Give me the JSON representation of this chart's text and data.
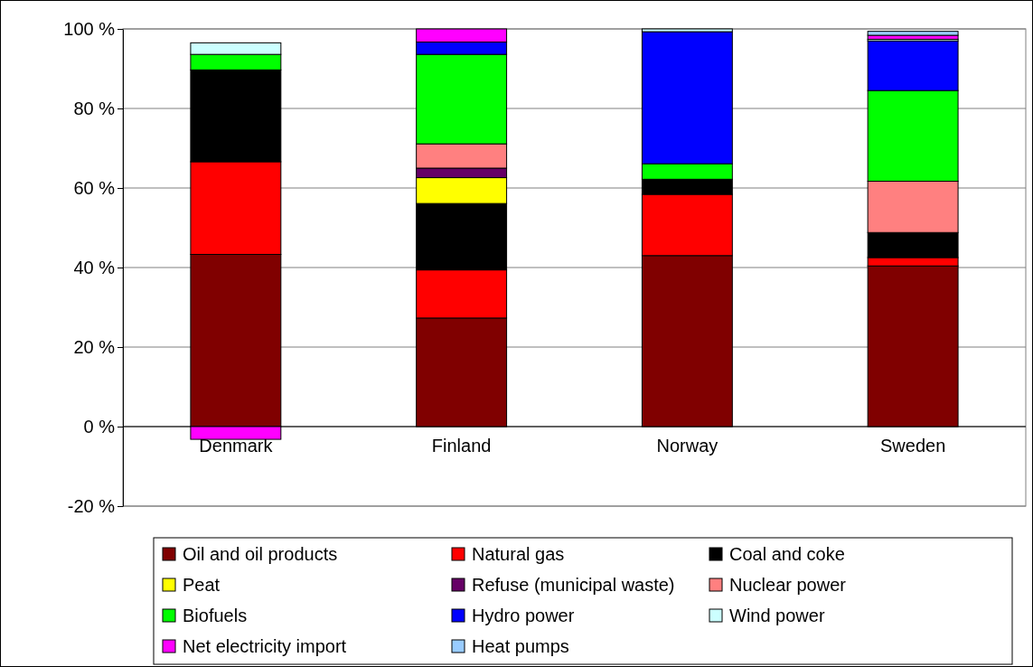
{
  "chart_data": {
    "type": "bar",
    "stacked": true,
    "categories": [
      "Denmark",
      "Finland",
      "Norway",
      "Sweden"
    ],
    "series": [
      {
        "name": "Oil and oil products",
        "color": "#800000",
        "values": [
          43.3,
          27.3,
          43.0,
          40.4
        ]
      },
      {
        "name": "Natural gas",
        "color": "#ff0000",
        "values": [
          23.3,
          12.1,
          15.4,
          2.1
        ]
      },
      {
        "name": "Coal and coke",
        "color": "#000000",
        "values": [
          23.1,
          16.7,
          3.8,
          6.3
        ]
      },
      {
        "name": "Peat",
        "color": "#ffff00",
        "values": [
          0,
          6.5,
          0,
          null
        ]
      },
      {
        "name": "Refuse (municipal waste)",
        "color": "#660066",
        "values": [
          null,
          2.4,
          0,
          0
        ]
      },
      {
        "name": "Nuclear power",
        "color": "#ff8080",
        "values": [
          0,
          6.1,
          0,
          12.9
        ]
      },
      {
        "name": "Biofuels",
        "color": "#00ff00",
        "values": [
          3.9,
          22.5,
          3.9,
          22.8
        ]
      },
      {
        "name": "Hydro power",
        "color": "#0000ff",
        "values": [
          0,
          3.1,
          33.2,
          12.5
        ]
      },
      {
        "name": "Wind power",
        "color": "#ccffff",
        "values": [
          2.9,
          0,
          0.7,
          0.4
        ]
      },
      {
        "name": "Net electricity import",
        "color": "#ff00ff",
        "values": [
          -3.2,
          3.3,
          0,
          1.0
        ]
      },
      {
        "name": "Heat pumps",
        "color": "#99ccff",
        "values": [
          0,
          0,
          0,
          1.0
        ]
      }
    ],
    "ylim": [
      -20,
      100
    ],
    "yticks": [
      {
        "value": -20,
        "label": "-20 %"
      },
      {
        "value": 0,
        "label": "0 %"
      },
      {
        "value": 20,
        "label": "20 %"
      },
      {
        "value": 40,
        "label": "40 %"
      },
      {
        "value": 60,
        "label": "60 %"
      },
      {
        "value": 80,
        "label": "80 %"
      },
      {
        "value": 100,
        "label": "100 %"
      }
    ],
    "grid": "y",
    "legend": "bottom"
  }
}
